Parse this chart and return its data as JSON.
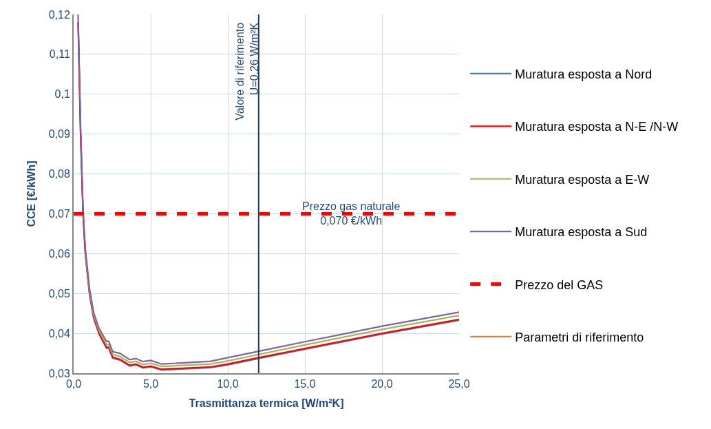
{
  "chart_data": {
    "type": "line",
    "xlabel": "Trasmittanza termica [W/m²K]",
    "ylabel": "CCE [€/kWh]",
    "x": [
      0.29,
      0.45,
      0.61,
      0.76,
      1.03,
      1.3,
      1.65,
      2.13,
      2.28,
      2.53,
      3.0,
      3.64,
      4.04,
      4.5,
      5.0,
      5.7,
      8.9,
      10,
      12,
      15,
      20,
      25
    ],
    "series": [
      {
        "name": "Muratura esposta a Nord",
        "color": "#4a7ab5",
        "values": [
          0.118,
          0.09,
          0.07,
          0.0598,
          0.0498,
          0.0438,
          0.0398,
          0.0363,
          0.0363,
          0.0338,
          0.0333,
          0.0318,
          0.0321,
          0.0313,
          0.0316,
          0.0308,
          0.0314,
          0.0321,
          0.0337,
          0.036,
          0.0398,
          0.0433
        ]
      },
      {
        "name": "Muratura esposta a N-E /N-W",
        "color": "#ff0000",
        "values": [
          0.118,
          0.09,
          0.07,
          0.06,
          0.05,
          0.044,
          0.04,
          0.0365,
          0.0365,
          0.034,
          0.0335,
          0.032,
          0.0323,
          0.0315,
          0.0318,
          0.031,
          0.0316,
          0.0323,
          0.0339,
          0.0362,
          0.04,
          0.0435
        ]
      },
      {
        "name": "Muratura esposta a E-W",
        "color": "#9bbb59",
        "values": [
          null,
          null,
          null,
          0.0606,
          0.0506,
          0.0446,
          0.0406,
          0.0372,
          0.0372,
          0.0347,
          0.0342,
          0.0327,
          0.033,
          0.0322,
          0.0325,
          0.0317,
          0.0323,
          0.0331,
          0.0347,
          0.0371,
          0.041,
          0.0445
        ]
      },
      {
        "name": "Muratura esposta a Sud",
        "color": "#8064a2",
        "values": [
          0.12,
          0.092,
          0.071,
          0.0612,
          0.0512,
          0.0452,
          0.0412,
          0.038,
          0.038,
          0.0354,
          0.035,
          0.0334,
          0.0337,
          0.0329,
          0.0332,
          0.0323,
          0.033,
          0.0339,
          0.0355,
          0.0379,
          0.0418,
          0.0453
        ]
      },
      {
        "name": "Prezzo del GAS",
        "color": "#ff0000",
        "line_style": "dashed",
        "x": [
          0,
          25
        ],
        "values": [
          0.07,
          0.07
        ]
      },
      {
        "name": "Parametri di riferimento",
        "color": "#ed7d31",
        "values": [
          null,
          null,
          null,
          null,
          null,
          null,
          null,
          null,
          null,
          null,
          null,
          null,
          null,
          null,
          null,
          null,
          null,
          null,
          null,
          null,
          null,
          null
        ]
      }
    ],
    "ref_lines": [
      {
        "axis": "x",
        "value": 12,
        "color": "#1f3864"
      }
    ],
    "annotations": [
      {
        "text": "Valore di riferimento\nU=0,26 W/m²K",
        "x": 12,
        "y": 0.12
      },
      {
        "text": "Prezzo gas naturale\n0,070 €/kWh",
        "x": 18,
        "y": 0.07
      }
    ],
    "xlim": [
      0,
      25
    ],
    "ylim": [
      0.03,
      0.12
    ],
    "xticks": [
      {
        "value": 0,
        "label": "0,0"
      },
      {
        "value": 5,
        "label": "5,0"
      },
      {
        "value": 10,
        "label": "10,0"
      },
      {
        "value": 15,
        "label": "15,0"
      },
      {
        "value": 20,
        "label": "20,0"
      },
      {
        "value": 25,
        "label": "25,0"
      }
    ],
    "yticks": [
      {
        "value": 0.03,
        "label": "0,03"
      },
      {
        "value": 0.04,
        "label": "0,04"
      },
      {
        "value": 0.05,
        "label": "0,05"
      },
      {
        "value": 0.06,
        "label": "0,06"
      },
      {
        "value": 0.07,
        "label": "0,07"
      },
      {
        "value": 0.08,
        "label": "0,08"
      },
      {
        "value": 0.09,
        "label": "0,09"
      },
      {
        "value": 0.1,
        "label": "0,1"
      },
      {
        "value": 0.11,
        "label": "0,11"
      },
      {
        "value": 0.12,
        "label": "0,12"
      }
    ],
    "grid": true,
    "legend": "right",
    "marker": "none",
    "line_style": "solid"
  }
}
